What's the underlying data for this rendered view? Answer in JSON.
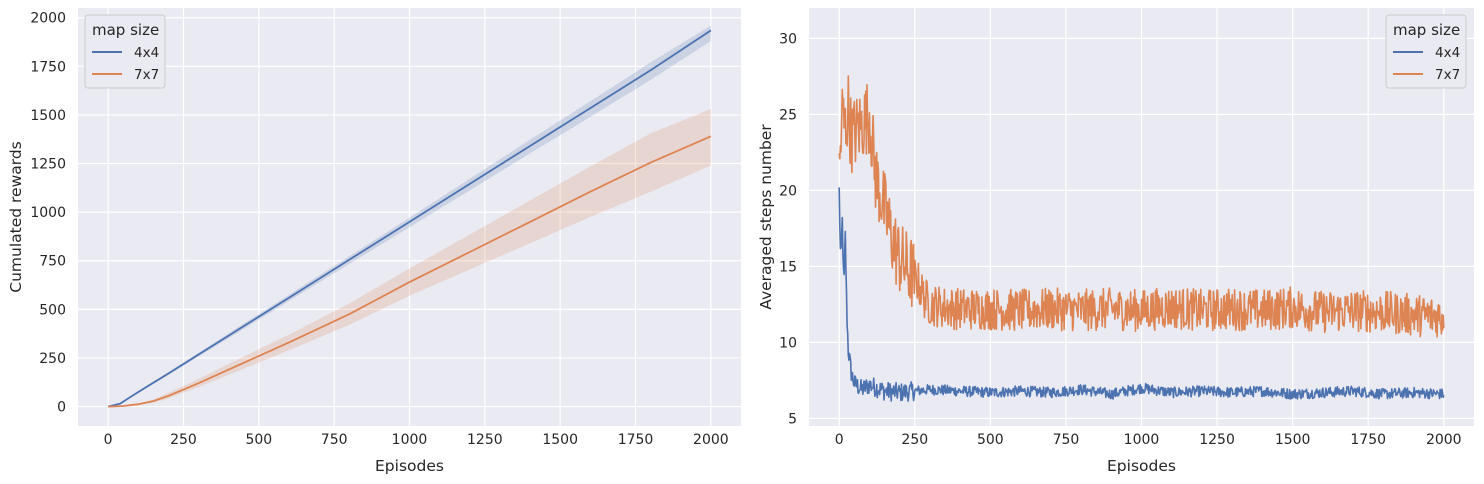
{
  "chart_data": [
    {
      "type": "line",
      "xlabel": "Episodes",
      "ylabel": "Cumulated rewards",
      "xlim": [
        -100,
        2100
      ],
      "ylim": [
        -100,
        2050
      ],
      "xticks": [
        0,
        250,
        500,
        750,
        1000,
        1250,
        1500,
        1750,
        2000
      ],
      "yticks": [
        0,
        250,
        500,
        750,
        1000,
        1250,
        1500,
        1750,
        2000
      ],
      "grid": true,
      "legend": {
        "title": "map size",
        "placement": "top-left"
      },
      "series": [
        {
          "name": "4x4",
          "color": "#4c72b0",
          "x": [
            0,
            40,
            100,
            200,
            400,
            600,
            800,
            1000,
            1200,
            1400,
            1600,
            1800,
            2000
          ],
          "y": [
            0,
            15,
            75,
            170,
            365,
            560,
            755,
            950,
            1145,
            1340,
            1535,
            1730,
            1935
          ],
          "ci_low": [
            0,
            13,
            70,
            163,
            352,
            543,
            733,
            922,
            1112,
            1302,
            1490,
            1680,
            1880
          ],
          "ci_high": [
            0,
            17,
            80,
            177,
            377,
            575,
            773,
            972,
            1172,
            1372,
            1570,
            1770,
            1960
          ]
        },
        {
          "name": "7x7",
          "color": "#dd8452",
          "x": [
            0,
            50,
            100,
            150,
            200,
            300,
            400,
            600,
            800,
            1000,
            1200,
            1400,
            1600,
            1800,
            2000
          ],
          "y": [
            0,
            3,
            12,
            28,
            55,
            120,
            190,
            330,
            475,
            640,
            795,
            950,
            1105,
            1255,
            1390
          ],
          "ci_low": [
            0,
            2,
            8,
            20,
            42,
            100,
            163,
            290,
            420,
            570,
            705,
            840,
            975,
            1105,
            1240
          ],
          "ci_high": [
            0,
            5,
            17,
            36,
            70,
            142,
            220,
            370,
            530,
            710,
            885,
            1060,
            1235,
            1405,
            1530
          ]
        }
      ]
    },
    {
      "type": "line",
      "xlabel": "Episodes",
      "ylabel": "Averaged steps number",
      "xlim": [
        -100,
        2100
      ],
      "ylim": [
        4.5,
        32
      ],
      "xticks": [
        0,
        250,
        500,
        750,
        1000,
        1250,
        1500,
        1750,
        2000
      ],
      "yticks": [
        5,
        10,
        15,
        20,
        25,
        30
      ],
      "grid": true,
      "legend": {
        "title": "map size",
        "placement": "top-right"
      },
      "series": [
        {
          "name": "4x4",
          "color": "#4c72b0",
          "x": [
            0,
            5,
            10,
            15,
            20,
            25,
            30,
            40,
            50,
            75,
            100,
            150,
            200,
            250,
            300,
            400,
            500,
            600,
            700,
            800,
            900,
            1000,
            1100,
            1200,
            1300,
            1400,
            1500,
            1600,
            1700,
            1800,
            1900,
            2000
          ],
          "y": [
            20,
            15,
            18,
            13.5,
            17,
            12,
            9.5,
            8,
            7.3,
            6.9,
            7.2,
            6.8,
            6.7,
            6.8,
            6.9,
            6.8,
            6.7,
            6.8,
            6.7,
            6.9,
            6.6,
            7.0,
            6.7,
            6.8,
            6.7,
            6.8,
            6.6,
            6.7,
            6.8,
            6.6,
            6.7,
            6.6
          ],
          "noise": 0.35
        },
        {
          "name": "7x7",
          "color": "#dd8452",
          "x": [
            0,
            10,
            20,
            30,
            40,
            60,
            80,
            100,
            120,
            140,
            160,
            180,
            200,
            220,
            240,
            260,
            280,
            300,
            350,
            400,
            500,
            600,
            700,
            800,
            900,
            1000,
            1100,
            1200,
            1300,
            1400,
            1500,
            1600,
            1700,
            1800,
            1900,
            2000
          ],
          "y": [
            21,
            25,
            24,
            25.5,
            23.5,
            24,
            24.5,
            25,
            21,
            19.5,
            18,
            16.5,
            15.5,
            15,
            14.5,
            14,
            13,
            12.5,
            12.3,
            12.2,
            12.2,
            12.1,
            12.2,
            12.1,
            12.2,
            12.1,
            12.3,
            12.1,
            12.2,
            12.1,
            12.3,
            12.0,
            12.1,
            12.0,
            11.8,
            11.7
          ],
          "noise": 1.4
        }
      ]
    }
  ]
}
